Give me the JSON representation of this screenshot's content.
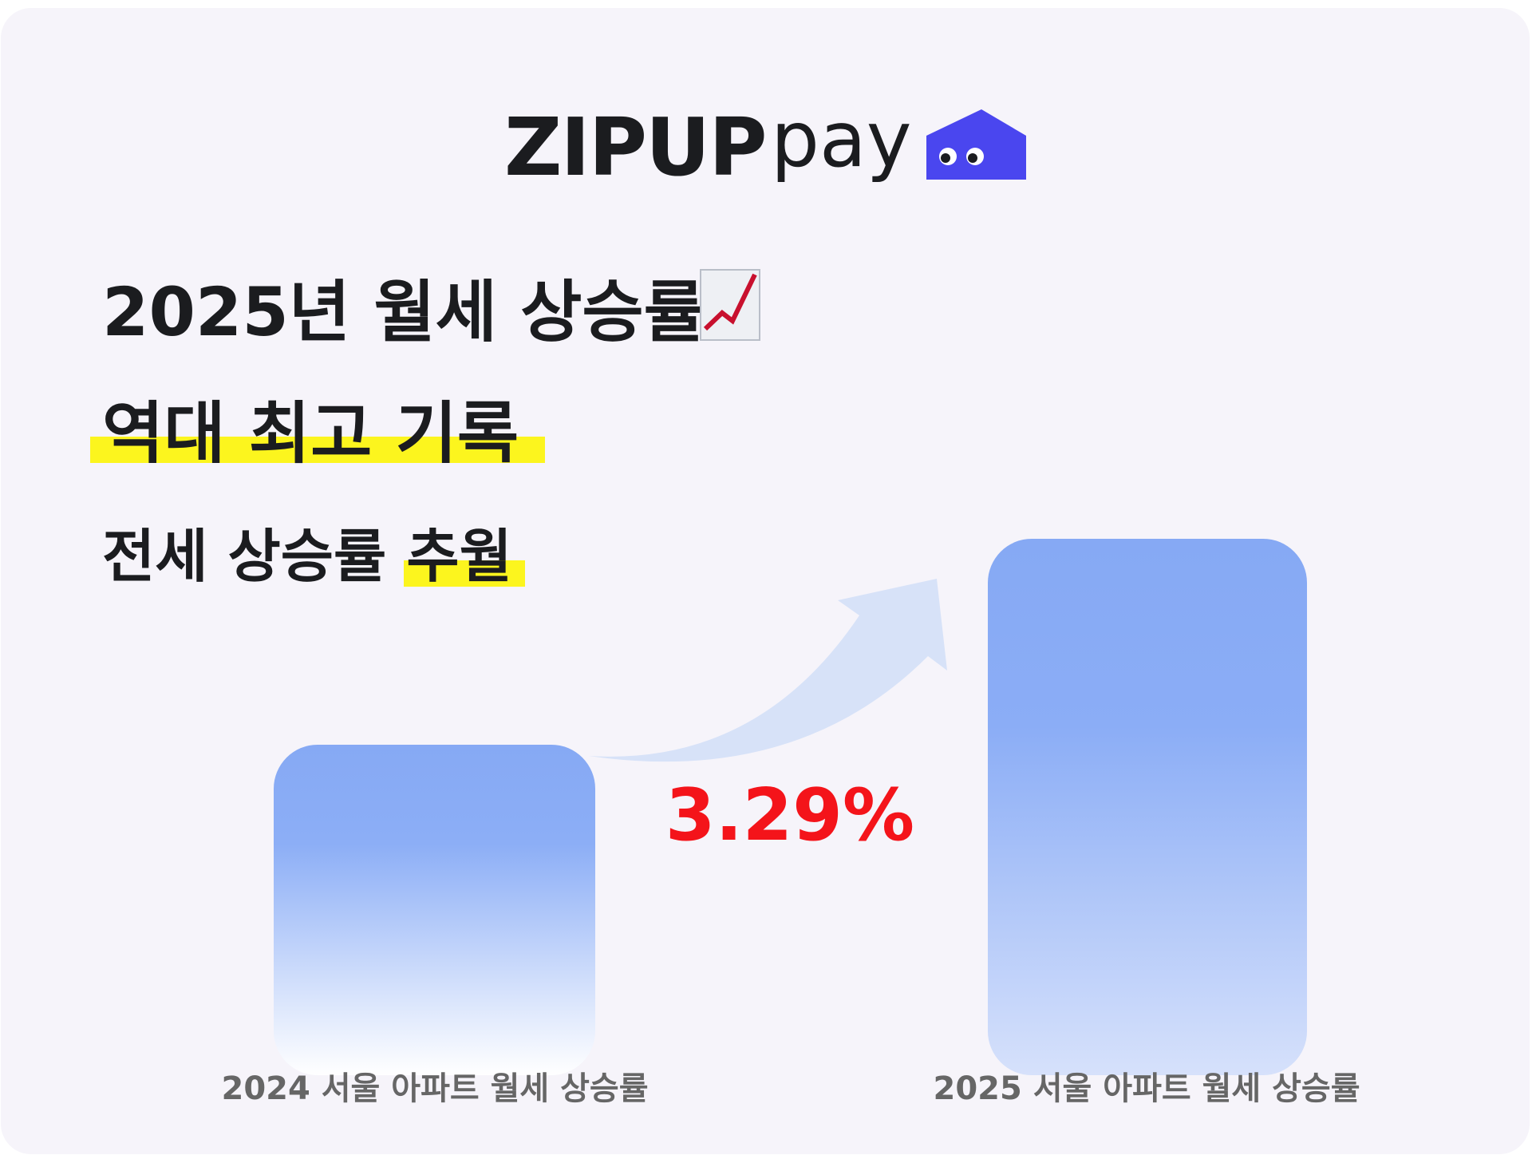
{
  "logo": {
    "brand": "ZIPUP",
    "suffix": "pay"
  },
  "headline": {
    "line1": "2025년 월세 상승률",
    "line2": "역대 최고 기록",
    "line3a": "전세 상승률 ",
    "line3b": "추월"
  },
  "comparison": {
    "change": "3.29%",
    "bars": [
      {
        "label": "2024 서울 아파트 월세 상승률"
      },
      {
        "label": "2025 서울 아파트 월세 상승률"
      }
    ]
  }
}
